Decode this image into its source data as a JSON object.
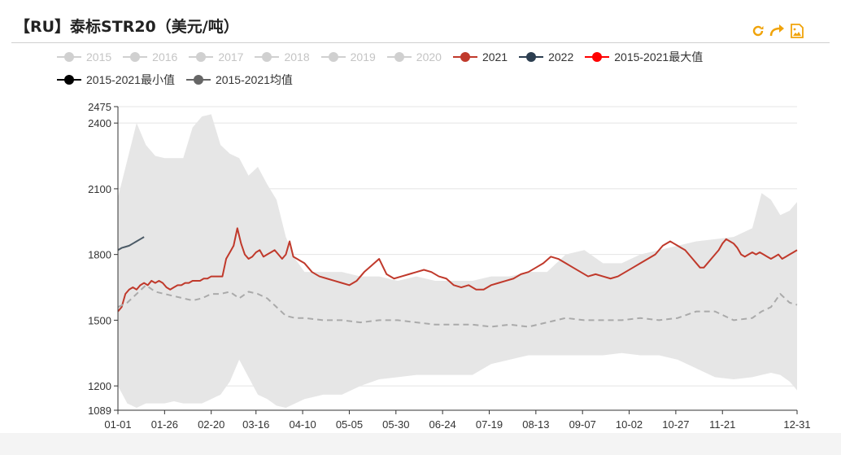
{
  "title": "【RU】泰标STR20（美元/吨）",
  "toolbox": {
    "refresh_icon": "refresh-icon",
    "restore_icon": "restore-icon",
    "save_icon": "save-image-icon",
    "color": "#f0a30a"
  },
  "legend": [
    [
      {
        "label": "2015",
        "color": "#c8c8c8",
        "active": false
      },
      {
        "label": "2016",
        "color": "#c8c8c8",
        "active": false
      },
      {
        "label": "2017",
        "color": "#c8c8c8",
        "active": false
      },
      {
        "label": "2018",
        "color": "#c8c8c8",
        "active": false
      },
      {
        "label": "2019",
        "color": "#c8c8c8",
        "active": false
      },
      {
        "label": "2020",
        "color": "#c8c8c8",
        "active": false
      },
      {
        "label": "2021",
        "color": "#c0392b",
        "active": true
      },
      {
        "label": "2022",
        "color": "#2c3e50",
        "active": true
      },
      {
        "label": "2015-2021最大值",
        "color": "#ff0000",
        "active": true
      }
    ],
    [
      {
        "label": "2015-2021最小值",
        "color": "#000000",
        "active": true
      },
      {
        "label": "2015-2021均值",
        "color": "#666666",
        "active": true
      }
    ]
  ],
  "chart_data": {
    "type": "line",
    "x_ticks": [
      "01-01",
      "01-26",
      "02-20",
      "03-16",
      "04-10",
      "05-05",
      "05-30",
      "06-24",
      "07-19",
      "08-13",
      "09-07",
      "10-02",
      "10-27",
      "11-21",
      "12-31"
    ],
    "x_tick_days": [
      0,
      25,
      50,
      74,
      99,
      124,
      149,
      174,
      199,
      224,
      249,
      274,
      299,
      324,
      364
    ],
    "y_ticks": [
      1089,
      1200,
      1500,
      1800,
      2100,
      2400,
      2475
    ],
    "ylim": [
      1089,
      2475
    ],
    "xlim": [
      0,
      364
    ],
    "grid": true,
    "band": {
      "name": "2015-2021 range",
      "color": "#e6e6e6",
      "x": [
        0,
        5,
        10,
        15,
        20,
        25,
        30,
        35,
        40,
        45,
        50,
        55,
        60,
        65,
        70,
        75,
        80,
        85,
        90,
        95,
        100,
        110,
        120,
        130,
        140,
        150,
        160,
        170,
        180,
        190,
        200,
        210,
        220,
        230,
        240,
        250,
        260,
        270,
        280,
        290,
        300,
        310,
        320,
        330,
        340,
        345,
        350,
        355,
        360,
        364
      ],
      "upper": [
        2060,
        2230,
        2400,
        2300,
        2250,
        2240,
        2240,
        2240,
        2380,
        2430,
        2440,
        2300,
        2260,
        2240,
        2160,
        2200,
        2120,
        2050,
        1880,
        1780,
        1720,
        1720,
        1720,
        1700,
        1700,
        1680,
        1700,
        1680,
        1680,
        1680,
        1700,
        1700,
        1720,
        1720,
        1800,
        1820,
        1760,
        1760,
        1800,
        1820,
        1840,
        1860,
        1870,
        1880,
        1920,
        2080,
        2050,
        1980,
        2000,
        2040
      ],
      "lower": [
        1200,
        1120,
        1100,
        1120,
        1120,
        1120,
        1130,
        1120,
        1120,
        1120,
        1140,
        1160,
        1220,
        1320,
        1240,
        1160,
        1140,
        1110,
        1100,
        1120,
        1140,
        1160,
        1160,
        1200,
        1230,
        1240,
        1250,
        1250,
        1250,
        1250,
        1300,
        1320,
        1340,
        1340,
        1340,
        1340,
        1340,
        1350,
        1340,
        1340,
        1320,
        1280,
        1240,
        1230,
        1240,
        1250,
        1260,
        1250,
        1220,
        1180
      ]
    },
    "series": [
      {
        "name": "2021",
        "color": "#c0392b",
        "style": "solid",
        "x": [
          0,
          2,
          4,
          6,
          8,
          10,
          12,
          14,
          16,
          18,
          20,
          22,
          24,
          26,
          28,
          30,
          32,
          34,
          36,
          38,
          40,
          42,
          44,
          46,
          48,
          50,
          52,
          54,
          56,
          58,
          60,
          62,
          64,
          66,
          68,
          70,
          72,
          74,
          76,
          78,
          80,
          82,
          84,
          86,
          88,
          90,
          92,
          94,
          96,
          98,
          100,
          104,
          108,
          112,
          116,
          120,
          124,
          128,
          132,
          136,
          140,
          144,
          148,
          152,
          156,
          160,
          164,
          168,
          172,
          176,
          180,
          184,
          188,
          192,
          196,
          200,
          204,
          208,
          212,
          216,
          220,
          224,
          228,
          232,
          236,
          240,
          244,
          248,
          252,
          256,
          260,
          264,
          268,
          272,
          276,
          280,
          284,
          288,
          292,
          296,
          298,
          300,
          302,
          304,
          306,
          308,
          310,
          312,
          314,
          316,
          318,
          320,
          322,
          324,
          326,
          328,
          330,
          332,
          334,
          336,
          338,
          340,
          342,
          344,
          346,
          348,
          350,
          352,
          354,
          356,
          358,
          360,
          362,
          364
        ],
        "y": [
          1540,
          1560,
          1620,
          1640,
          1650,
          1640,
          1660,
          1670,
          1660,
          1680,
          1670,
          1680,
          1670,
          1650,
          1640,
          1650,
          1660,
          1660,
          1670,
          1670,
          1680,
          1680,
          1680,
          1690,
          1690,
          1700,
          1700,
          1700,
          1700,
          1780,
          1810,
          1840,
          1920,
          1850,
          1800,
          1780,
          1790,
          1810,
          1820,
          1790,
          1800,
          1810,
          1820,
          1800,
          1780,
          1800,
          1860,
          1790,
          1780,
          1770,
          1760,
          1720,
          1700,
          1690,
          1680,
          1670,
          1660,
          1680,
          1720,
          1750,
          1780,
          1710,
          1690,
          1700,
          1710,
          1720,
          1730,
          1720,
          1700,
          1690,
          1660,
          1650,
          1660,
          1640,
          1640,
          1660,
          1670,
          1680,
          1690,
          1710,
          1720,
          1740,
          1760,
          1790,
          1780,
          1760,
          1740,
          1720,
          1700,
          1710,
          1700,
          1690,
          1700,
          1720,
          1740,
          1760,
          1780,
          1800,
          1840,
          1860,
          1850,
          1840,
          1830,
          1820,
          1800,
          1780,
          1760,
          1740,
          1740,
          1760,
          1780,
          1800,
          1820,
          1850,
          1870,
          1860,
          1850,
          1830,
          1800,
          1790,
          1800,
          1810,
          1800,
          1810,
          1800,
          1790,
          1780,
          1790,
          1800,
          1780,
          1790,
          1800,
          1810,
          1820
        ]
      },
      {
        "name": "2022",
        "color": "#4b5a66",
        "style": "solid",
        "x": [
          0,
          2,
          4,
          6,
          8,
          10,
          12,
          14
        ],
        "y": [
          1820,
          1830,
          1835,
          1840,
          1850,
          1860,
          1870,
          1880
        ]
      },
      {
        "name": "2015-2021均值",
        "color": "#aaaaaa",
        "style": "dashed",
        "x": [
          0,
          5,
          10,
          15,
          20,
          25,
          30,
          35,
          40,
          45,
          50,
          55,
          60,
          65,
          70,
          75,
          80,
          85,
          90,
          95,
          100,
          110,
          120,
          130,
          140,
          150,
          160,
          170,
          180,
          190,
          200,
          210,
          220,
          230,
          240,
          250,
          260,
          270,
          280,
          290,
          300,
          310,
          320,
          330,
          340,
          345,
          350,
          355,
          360,
          364
        ],
        "y": [
          1560,
          1580,
          1620,
          1660,
          1630,
          1620,
          1610,
          1600,
          1590,
          1600,
          1620,
          1620,
          1630,
          1600,
          1630,
          1620,
          1600,
          1560,
          1520,
          1510,
          1510,
          1500,
          1500,
          1490,
          1500,
          1500,
          1490,
          1480,
          1480,
          1480,
          1470,
          1480,
          1470,
          1490,
          1510,
          1500,
          1500,
          1500,
          1510,
          1500,
          1510,
          1540,
          1540,
          1500,
          1510,
          1540,
          1560,
          1620,
          1580,
          1570
        ]
      }
    ]
  }
}
